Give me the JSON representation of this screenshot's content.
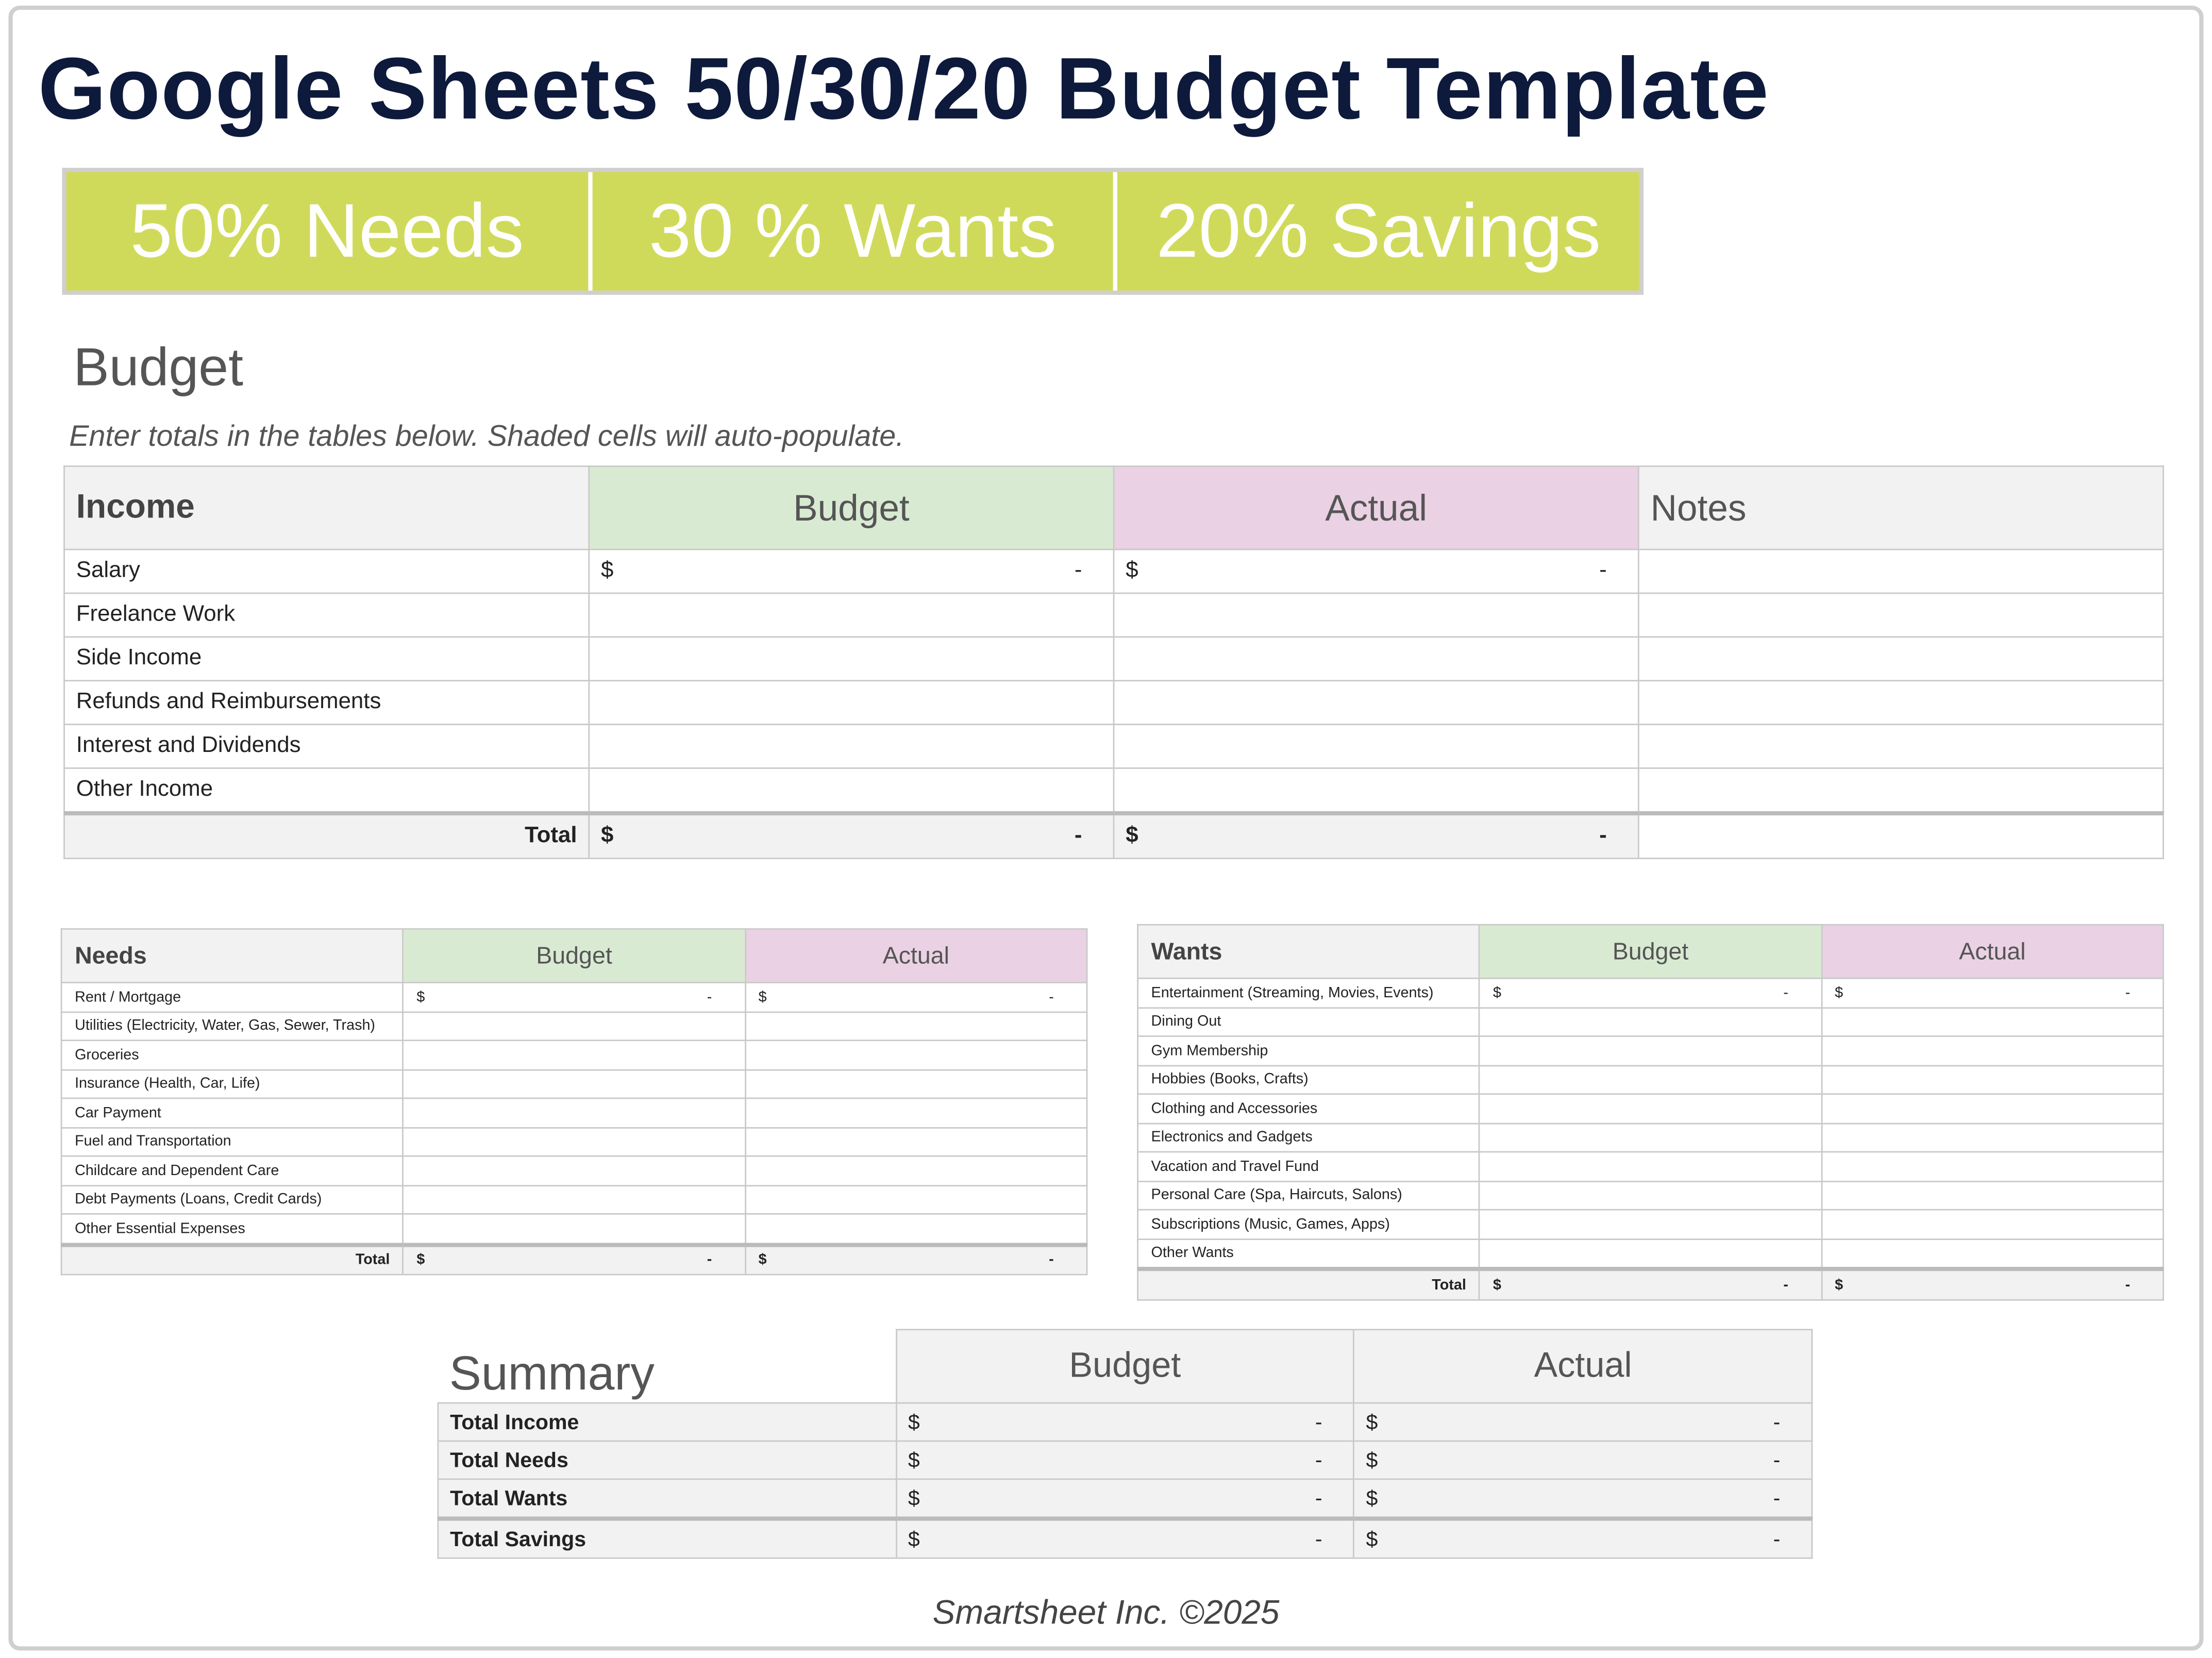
{
  "title": "Google Sheets 50/30/20 Budget Template",
  "banner": [
    "50% Needs",
    "30 % Wants",
    "20% Savings"
  ],
  "colors": {
    "banner": "#d0da5a",
    "budget_header": "#d9ead3",
    "actual_header": "#ead1e3",
    "title": "#0e1a3c"
  },
  "budget_heading": "Budget",
  "instructions": "Enter totals in the tables below. Shaded cells will auto-populate.",
  "income": {
    "headers": [
      "Income",
      "Budget",
      "Actual",
      "Notes"
    ],
    "rows": [
      {
        "label": "Salary",
        "budget": [
          "$",
          "-"
        ],
        "actual": [
          "$",
          "-"
        ]
      },
      {
        "label": "Freelance Work"
      },
      {
        "label": "Side Income"
      },
      {
        "label": "Refunds and Reimbursements"
      },
      {
        "label": "Interest and Dividends"
      },
      {
        "label": "Other Income"
      }
    ],
    "total": {
      "label": "Total",
      "budget": [
        "$",
        "-"
      ],
      "actual": [
        "$",
        "-"
      ]
    }
  },
  "needs": {
    "headers": [
      "Needs",
      "Budget",
      "Actual"
    ],
    "rows": [
      {
        "label": "Rent / Mortgage",
        "budget": [
          "$",
          "-"
        ],
        "actual": [
          "$",
          "-"
        ]
      },
      {
        "label": "Utilities (Electricity, Water, Gas, Sewer, Trash)"
      },
      {
        "label": "Groceries"
      },
      {
        "label": "Insurance (Health, Car, Life)"
      },
      {
        "label": "Car Payment"
      },
      {
        "label": "Fuel and Transportation"
      },
      {
        "label": "Childcare and Dependent Care"
      },
      {
        "label": "Debt Payments (Loans, Credit Cards)"
      },
      {
        "label": "Other Essential Expenses"
      }
    ],
    "total": {
      "label": "Total",
      "budget": [
        "$",
        "-"
      ],
      "actual": [
        "$",
        "-"
      ]
    }
  },
  "wants": {
    "headers": [
      "Wants",
      "Budget",
      "Actual"
    ],
    "rows": [
      {
        "label": "Entertainment (Streaming, Movies, Events)",
        "budget": [
          "$",
          "-"
        ],
        "actual": [
          "$",
          "-"
        ]
      },
      {
        "label": "Dining Out"
      },
      {
        "label": "Gym Membership"
      },
      {
        "label": "Hobbies (Books, Crafts)"
      },
      {
        "label": "Clothing and Accessories"
      },
      {
        "label": "Electronics and Gadgets"
      },
      {
        "label": "Vacation and Travel Fund"
      },
      {
        "label": "Personal Care (Spa, Haircuts, Salons)"
      },
      {
        "label": "Subscriptions (Music, Games, Apps)"
      },
      {
        "label": "Other Wants"
      }
    ],
    "total": {
      "label": "Total",
      "budget": [
        "$",
        "-"
      ],
      "actual": [
        "$",
        "-"
      ]
    }
  },
  "summary": {
    "headers": [
      "Summary",
      "Budget",
      "Actual"
    ],
    "rows": [
      {
        "label": "Total Income",
        "budget": [
          "$",
          "-"
        ],
        "actual": [
          "$",
          "-"
        ]
      },
      {
        "label": "Total Needs",
        "budget": [
          "$",
          "-"
        ],
        "actual": [
          "$",
          "-"
        ]
      },
      {
        "label": "Total Wants",
        "budget": [
          "$",
          "-"
        ],
        "actual": [
          "$",
          "-"
        ]
      },
      {
        "label": "Total Savings",
        "budget": [
          "$",
          "-"
        ],
        "actual": [
          "$",
          "-"
        ]
      }
    ]
  },
  "footer": "Smartsheet Inc. ©2025"
}
